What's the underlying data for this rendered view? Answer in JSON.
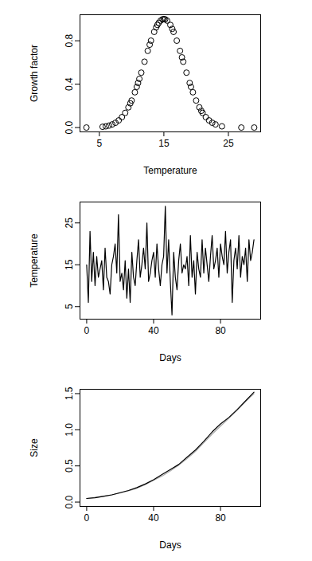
{
  "chart_data": [
    {
      "type": "scatter",
      "x_label": "Temperature",
      "y_label": "Growth factor",
      "xlim": [
        2,
        30
      ],
      "ylim": [
        -0.04,
        1.04
      ],
      "xticks": [
        5,
        15,
        25
      ],
      "yticks": [
        {
          "value": 0,
          "label": "0.0"
        },
        {
          "value": 0.4,
          "label": "0.4"
        },
        {
          "value": 0.8,
          "label": "0.8"
        }
      ],
      "marker": "open_circle",
      "color": "black",
      "x": [
        3,
        5.5,
        6,
        6.5,
        7,
        7.5,
        8,
        8.5,
        9,
        9.5,
        9.8,
        10,
        10.5,
        10.8,
        11,
        11.2,
        11.5,
        12,
        12.5,
        12.8,
        13,
        13.5,
        13.8,
        14,
        14.2,
        14.5,
        14.8,
        15,
        15.2,
        15.5,
        16,
        16.3,
        16.5,
        17,
        17.5,
        17.8,
        18,
        18.5,
        19,
        19.2,
        19.5,
        20,
        20.5,
        20.8,
        21,
        21.5,
        22,
        22.5,
        23,
        24,
        27,
        29
      ],
      "values": [
        0.0,
        0.007,
        0.011,
        0.018,
        0.029,
        0.044,
        0.066,
        0.096,
        0.135,
        0.186,
        0.223,
        0.249,
        0.325,
        0.375,
        0.411,
        0.449,
        0.506,
        0.607,
        0.707,
        0.764,
        0.801,
        0.882,
        0.923,
        0.946,
        0.965,
        0.986,
        0.998,
        1.0,
        0.998,
        0.986,
        0.946,
        0.91,
        0.882,
        0.801,
        0.707,
        0.647,
        0.607,
        0.506,
        0.411,
        0.375,
        0.325,
        0.249,
        0.186,
        0.154,
        0.135,
        0.096,
        0.066,
        0.044,
        0.029,
        0.011,
        0.0,
        0.0
      ]
    },
    {
      "type": "line",
      "x_label": "Days",
      "y_label": "Temperature",
      "xlim": [
        -4,
        104
      ],
      "ylim": [
        2,
        30
      ],
      "xticks": [
        0,
        40,
        80
      ],
      "yticks": [
        5,
        15,
        25
      ],
      "color": "black",
      "x": [
        0,
        1,
        2,
        3,
        4,
        5,
        6,
        7,
        8,
        9,
        10,
        11,
        12,
        13,
        14,
        15,
        16,
        17,
        18,
        19,
        20,
        21,
        22,
        23,
        24,
        25,
        26,
        27,
        28,
        29,
        30,
        31,
        32,
        33,
        34,
        35,
        36,
        37,
        38,
        39,
        40,
        41,
        42,
        43,
        44,
        45,
        46,
        47,
        48,
        49,
        50,
        51,
        52,
        53,
        54,
        55,
        56,
        57,
        58,
        59,
        60,
        61,
        62,
        63,
        64,
        65,
        66,
        67,
        68,
        69,
        70,
        71,
        72,
        73,
        74,
        75,
        76,
        77,
        78,
        79,
        80,
        81,
        82,
        83,
        84,
        85,
        86,
        87,
        88,
        89,
        90,
        91,
        92,
        93,
        94,
        95,
        96,
        97,
        98,
        99,
        100
      ],
      "values": [
        15,
        6,
        23,
        11,
        18,
        10,
        17,
        12,
        14,
        16,
        9,
        19,
        12,
        11,
        8,
        15,
        17,
        20,
        13,
        27,
        11,
        13,
        9,
        16,
        7,
        14,
        6,
        18,
        12,
        10,
        16,
        21,
        12,
        15,
        19,
        14,
        25,
        11,
        13,
        16,
        18,
        12,
        20,
        14,
        10,
        15,
        17,
        29,
        13,
        21,
        11,
        3,
        18,
        12,
        9,
        16,
        20,
        13,
        15,
        14,
        17,
        10,
        22,
        12,
        16,
        8,
        18,
        14,
        12,
        21,
        13,
        19,
        15,
        11,
        17,
        22,
        14,
        16,
        19,
        12,
        20,
        17,
        15,
        23,
        13,
        18,
        21,
        6,
        16,
        19,
        14,
        22,
        12,
        17,
        15,
        19,
        11,
        21,
        16,
        18,
        21
      ]
    },
    {
      "type": "line",
      "x_label": "Days",
      "y_label": "Size",
      "xlim": [
        -4,
        104
      ],
      "ylim": [
        -0.06,
        1.56
      ],
      "xticks": [
        0,
        40,
        80
      ],
      "yticks": [
        {
          "value": 0,
          "label": "0.0"
        },
        {
          "value": 0.5,
          "label": "0.5"
        },
        {
          "value": 1,
          "label": "1.0"
        },
        {
          "value": 1.5,
          "label": "1.5"
        }
      ],
      "x": [
        0,
        5,
        10,
        15,
        20,
        25,
        30,
        35,
        40,
        45,
        50,
        55,
        60,
        65,
        70,
        75,
        80,
        85,
        90,
        95,
        100
      ],
      "series": [
        {
          "color": "#aaaaaa",
          "values": [
            0.05,
            0.065,
            0.082,
            0.1,
            0.125,
            0.155,
            0.19,
            0.24,
            0.3,
            0.36,
            0.43,
            0.51,
            0.6,
            0.7,
            0.82,
            0.94,
            1.05,
            1.16,
            1.27,
            1.39,
            1.5
          ]
        },
        {
          "color": "black",
          "values": [
            0.05,
            0.06,
            0.08,
            0.1,
            0.13,
            0.16,
            0.2,
            0.25,
            0.31,
            0.38,
            0.45,
            0.52,
            0.62,
            0.72,
            0.84,
            0.97,
            1.08,
            1.17,
            1.28,
            1.4,
            1.52
          ]
        }
      ]
    }
  ]
}
